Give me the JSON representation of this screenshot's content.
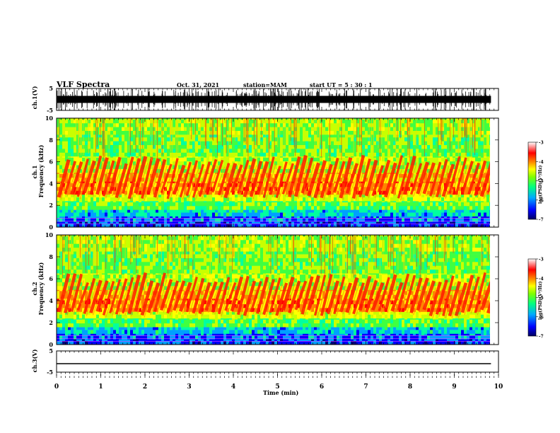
{
  "header": {
    "title": "VLF Spectra",
    "date": "Oct. 31, 2021",
    "station": "station=MAM",
    "start": "start  UT =   5 : 30 : 1"
  },
  "chart_data": {
    "type": "heatmap",
    "x": {
      "label": "Time  (min)",
      "range": [
        0,
        10
      ],
      "ticks": [
        "0",
        "1",
        "2",
        "3",
        "4",
        "5",
        "6",
        "7",
        "8",
        "9",
        "10"
      ]
    },
    "panels": [
      {
        "name": "waveform-ch1",
        "ylabel": "ch.1(V)",
        "yrange": [
          -5,
          5
        ],
        "ticks": [
          "5",
          "-5"
        ]
      },
      {
        "name": "spectrogram-ch1",
        "ylabel": "ch.1\nFrequency  (kHz)",
        "ylabel_line1": "ch.1",
        "ylabel_line2": "Frequency  (kHz)",
        "yrange": [
          0,
          10
        ],
        "ticks": [
          "0",
          "2",
          "4",
          "6",
          "8",
          "10"
        ],
        "colorbar": {
          "label": "log(PSD)(V²/Hz)",
          "range": [
            -7,
            -3
          ],
          "ticks": [
            "-3",
            "-4",
            "-5",
            "-6",
            "-7"
          ]
        }
      },
      {
        "name": "spectrogram-ch2",
        "ylabel_line1": "ch.2",
        "ylabel_line2": "Frequency  (kHz)",
        "yrange": [
          0,
          10
        ],
        "ticks": [
          "0",
          "2",
          "4",
          "6",
          "8",
          "10"
        ],
        "colorbar": {
          "label": "log(PSD)(V²/Hz)",
          "range": [
            -7,
            -3
          ],
          "ticks": [
            "-3",
            "-4",
            "-5",
            "-6",
            "-7"
          ]
        }
      },
      {
        "name": "waveform-ch3",
        "ylabel": "ch.3(V)",
        "yrange": [
          -5,
          5
        ],
        "ticks": [
          "5",
          "-5"
        ]
      }
    ],
    "data_end_min": 9.83,
    "colormap": [
      "#000080",
      "#0000ff",
      "#00a0ff",
      "#00ffa0",
      "#40ff40",
      "#c8ff00",
      "#ffff00",
      "#ff8000",
      "#ff0000",
      "#ffffff"
    ]
  }
}
